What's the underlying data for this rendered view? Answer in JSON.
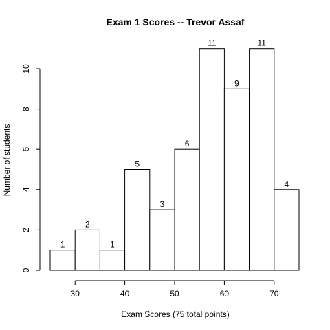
{
  "chart_data": {
    "type": "bar",
    "title": "Exam 1 Scores -- Trevor Assaf",
    "xlabel": "Exam Scores (75 total points)",
    "ylabel": "Number of students",
    "bins": [
      [
        25,
        30
      ],
      [
        30,
        35
      ],
      [
        35,
        40
      ],
      [
        40,
        45
      ],
      [
        45,
        50
      ],
      [
        50,
        55
      ],
      [
        55,
        60
      ],
      [
        60,
        65
      ],
      [
        65,
        70
      ],
      [
        70,
        75
      ]
    ],
    "values": [
      1,
      2,
      1,
      5,
      3,
      6,
      11,
      9,
      11,
      4
    ],
    "xticks": [
      30,
      40,
      50,
      60,
      70
    ],
    "yticks": [
      0,
      2,
      4,
      6,
      8,
      10
    ],
    "xlim": [
      25,
      75
    ],
    "ylim": [
      0,
      11
    ],
    "grid": false,
    "bar_fill": "#ffffff",
    "bar_stroke": "#000000"
  }
}
